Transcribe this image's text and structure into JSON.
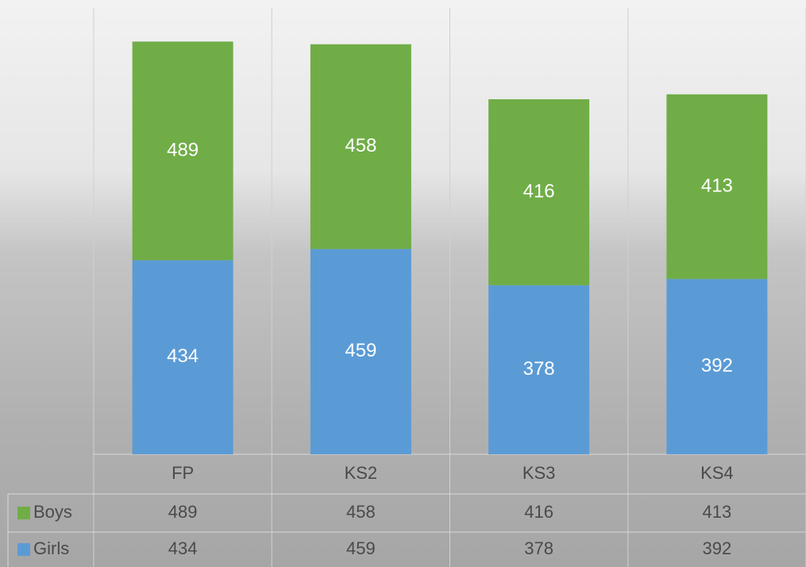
{
  "chart_data": {
    "type": "stacked-bar",
    "categories": [
      "FP",
      "KS2",
      "KS3",
      "KS4"
    ],
    "series": [
      {
        "name": "Boys",
        "color": "#70ad47",
        "values": [
          489,
          458,
          416,
          413
        ]
      },
      {
        "name": "Girls",
        "color": "#5b9bd5",
        "values": [
          434,
          459,
          378,
          392
        ]
      }
    ],
    "ylim": [
      0,
      1000
    ]
  }
}
